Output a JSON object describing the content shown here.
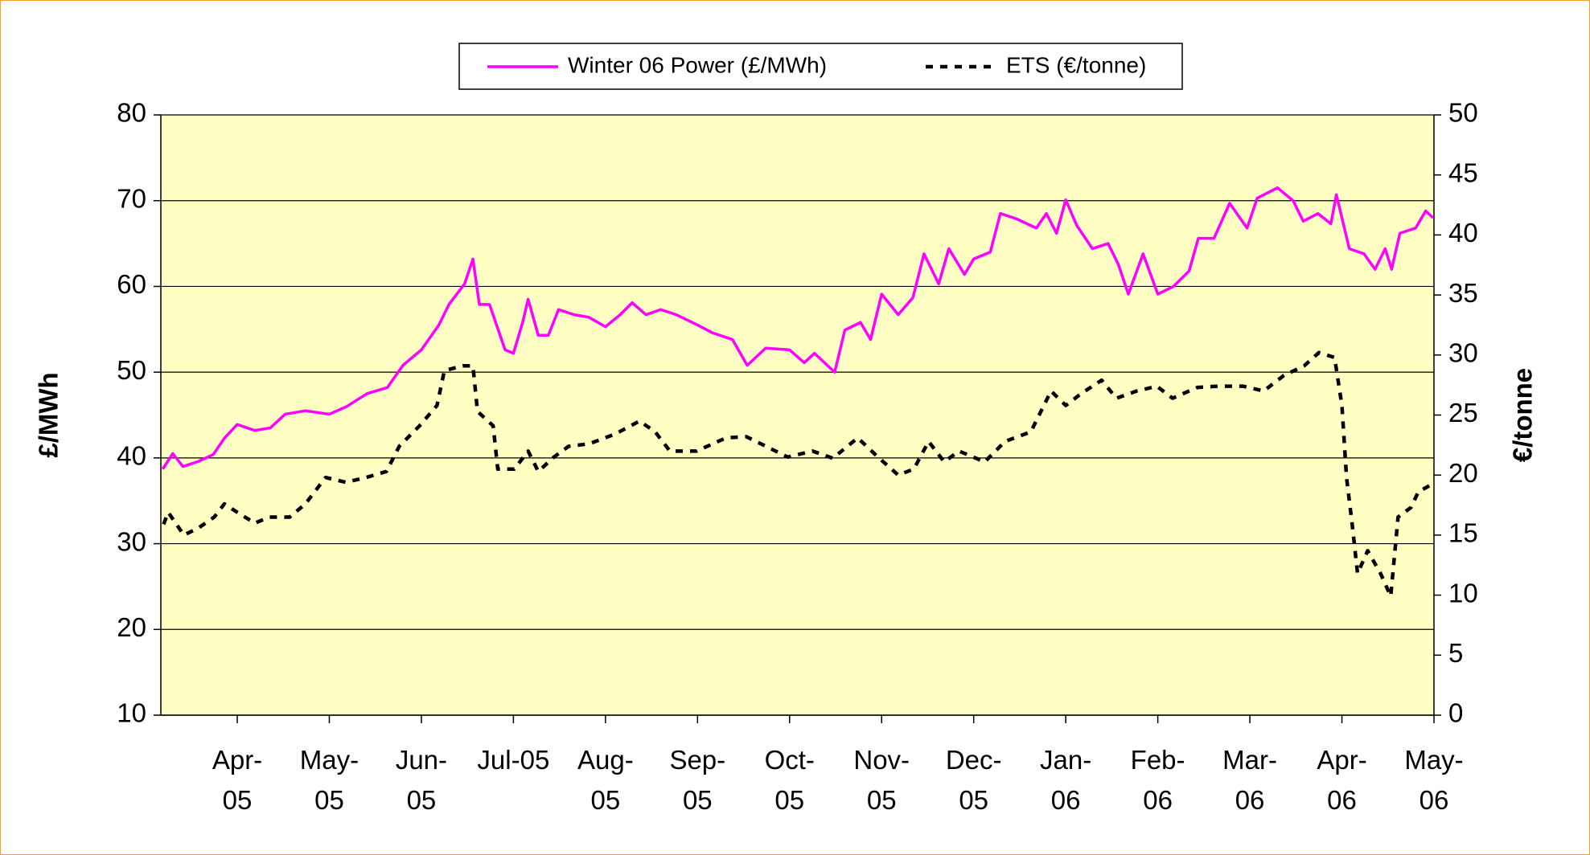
{
  "chart_data": {
    "type": "line",
    "y_label": "£/MWh",
    "y2_label": "€/tonne",
    "legend": "top",
    "grid": true,
    "xlim": [
      3.17,
      17
    ],
    "xticks": [
      {
        "value": 4,
        "label": "Apr-05"
      },
      {
        "value": 5,
        "label": "May-05"
      },
      {
        "value": 6,
        "label": "Jun-05"
      },
      {
        "value": 7,
        "label": "Jul-05"
      },
      {
        "value": 8,
        "label": "Aug-05"
      },
      {
        "value": 9,
        "label": "Sep-05"
      },
      {
        "value": 10,
        "label": "Oct-05"
      },
      {
        "value": 11,
        "label": "Nov-05"
      },
      {
        "value": 12,
        "label": "Dec-05"
      },
      {
        "value": 13,
        "label": "Jan-06"
      },
      {
        "value": 14,
        "label": "Feb-06"
      },
      {
        "value": 15,
        "label": "Mar-06"
      },
      {
        "value": 16,
        "label": "Apr-06"
      },
      {
        "value": 17,
        "label": "May-06"
      }
    ],
    "ylim": [
      10,
      80
    ],
    "yticks": [
      10,
      20,
      30,
      40,
      50,
      60,
      70,
      80
    ],
    "y2lim": [
      0,
      50
    ],
    "y2ticks": [
      0,
      5,
      10,
      15,
      20,
      25,
      30,
      35,
      40,
      45,
      50
    ],
    "series": [
      {
        "name": "Winter 06 Power (£/MWh)",
        "color": "#ff00ff",
        "style": "solid",
        "axis": "y",
        "x": [
          3.19,
          3.3,
          3.41,
          3.58,
          3.74,
          3.86,
          4.0,
          4.19,
          4.36,
          4.52,
          4.74,
          5.0,
          5.19,
          5.41,
          5.63,
          5.8,
          6.0,
          6.19,
          6.3,
          6.47,
          6.56,
          6.63,
          6.74,
          6.91,
          7.0,
          7.1,
          7.16,
          7.27,
          7.38,
          7.49,
          7.66,
          7.82,
          8.0,
          8.16,
          8.29,
          8.44,
          8.6,
          8.77,
          9.0,
          9.16,
          9.38,
          9.54,
          9.74,
          10.0,
          10.16,
          10.27,
          10.43,
          10.49,
          10.6,
          10.77,
          10.88,
          11.0,
          11.18,
          11.34,
          11.46,
          11.62,
          11.73,
          11.9,
          12.0,
          12.18,
          12.29,
          12.46,
          12.68,
          12.79,
          12.9,
          13.0,
          13.12,
          13.29,
          13.46,
          13.57,
          13.68,
          13.84,
          14.0,
          14.17,
          14.34,
          14.44,
          14.61,
          14.78,
          14.97,
          15.08,
          15.3,
          15.47,
          15.58,
          15.74,
          15.88,
          15.94,
          16.08,
          16.24,
          16.36,
          16.47,
          16.54,
          16.63,
          16.8,
          16.91,
          16.99
        ],
        "values": [
          38.7,
          40.5,
          39,
          39.6,
          40.4,
          42.3,
          43.9,
          43.2,
          43.5,
          45.1,
          45.5,
          45.1,
          46,
          47.5,
          48.2,
          50.8,
          52.6,
          55.5,
          57.9,
          60.3,
          63.2,
          57.9,
          57.9,
          52.6,
          52.2,
          55.8,
          58.5,
          54.3,
          54.3,
          57.3,
          56.7,
          56.4,
          55.3,
          56.7,
          58.1,
          56.7,
          57.3,
          56.7,
          55.5,
          54.6,
          53.8,
          50.8,
          52.8,
          52.6,
          51.1,
          52.2,
          50.6,
          50,
          54.9,
          55.8,
          53.8,
          59.1,
          56.7,
          58.7,
          63.8,
          60.3,
          64.4,
          61.4,
          63.2,
          64,
          68.5,
          67.9,
          66.8,
          68.5,
          66.2,
          70.1,
          67.1,
          64.4,
          65,
          62.6,
          59.1,
          63.8,
          59.1,
          60,
          61.8,
          65.6,
          65.6,
          69.7,
          66.8,
          70.3,
          71.5,
          70,
          67.6,
          68.5,
          67.3,
          70.7,
          64.4,
          63.8,
          62,
          64.4,
          62,
          66.2,
          66.8,
          68.8,
          68
        ]
      },
      {
        "name": "ETS (€/tonne)",
        "color": "#000000",
        "style": "dashed",
        "axis": "y2",
        "x": [
          3.2,
          3.25,
          3.42,
          3.58,
          3.75,
          3.86,
          4,
          4.19,
          4.35,
          4.57,
          4.74,
          4.96,
          5.18,
          5.4,
          5.62,
          5.76,
          5.98,
          6.17,
          6.25,
          6.45,
          6.56,
          6.61,
          6.78,
          6.83,
          7.01,
          7.16,
          7.27,
          7.44,
          7.6,
          7.82,
          8.1,
          8.37,
          8.54,
          8.7,
          8.99,
          9.31,
          9.53,
          9.98,
          10.25,
          10.47,
          10.74,
          10.96,
          11.18,
          11.35,
          11.51,
          11.68,
          11.84,
          12.12,
          12.34,
          12.62,
          12.84,
          13,
          13.17,
          13.39,
          13.55,
          13.77,
          13.99,
          14.16,
          14.43,
          14.65,
          14.93,
          15.15,
          15.37,
          15.59,
          15.75,
          15.92,
          16,
          16.05,
          16.11,
          16.17,
          16.28,
          16.42,
          16.53,
          16.61,
          16.75,
          16.83,
          16.97
        ],
        "values": [
          15.9,
          16.9,
          15,
          15.6,
          16.5,
          17.6,
          16.9,
          16,
          16.5,
          16.5,
          17.6,
          19.8,
          19.4,
          19.8,
          20.3,
          22.4,
          24.1,
          25.8,
          28.7,
          29.1,
          29.1,
          25.3,
          24.1,
          20.5,
          20.5,
          22,
          20.3,
          21.5,
          22.4,
          22.6,
          23.4,
          24.5,
          23.6,
          22,
          22,
          23.1,
          23.2,
          21.5,
          22,
          21.4,
          23.1,
          21.5,
          20,
          20.5,
          22.8,
          21.1,
          22,
          21.1,
          22.8,
          23.6,
          27,
          25.8,
          26.8,
          27.9,
          26.4,
          27,
          27.4,
          26.4,
          27.3,
          27.4,
          27.4,
          27,
          28.3,
          29.1,
          30.2,
          29.8,
          25.8,
          19.8,
          16,
          11.8,
          13.7,
          11.8,
          9.9,
          16.5,
          17.3,
          18.6,
          19.2
        ]
      }
    ]
  }
}
